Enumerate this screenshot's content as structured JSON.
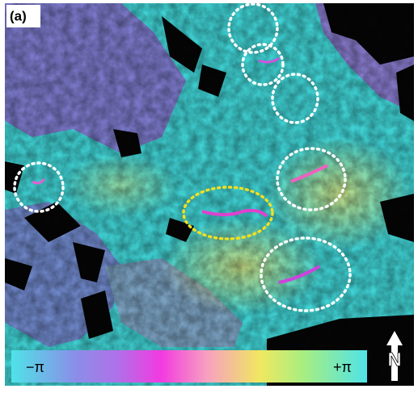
{
  "panel_label": "(a)",
  "colorbar": {
    "min_label": "−π",
    "max_label": "+π"
  },
  "north_label": "N"
}
